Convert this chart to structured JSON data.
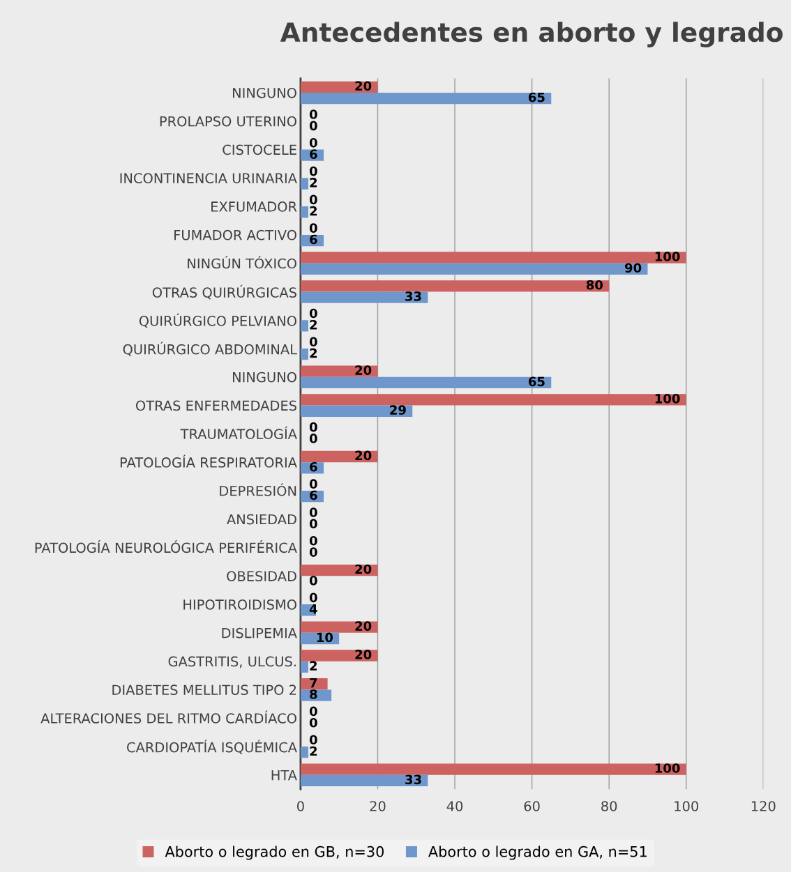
{
  "chart_data": {
    "type": "bar",
    "orientation": "horizontal",
    "title": "Antecedentes en aborto y legrado",
    "categories": [
      "NINGUNO",
      "PROLAPSO UTERINO",
      "CISTOCELE",
      "INCONTINENCIA URINARIA",
      "EXFUMADOR",
      "FUMADOR ACTIVO",
      "NINGÚN TÓXICO",
      "OTRAS QUIRÚRGICAS",
      "QUIRÚRGICO PELVIANO",
      "QUIRÚRGICO ABDOMINAL",
      "NINGUNO",
      "OTRAS ENFERMEDADES",
      "TRAUMATOLOGÍA",
      "PATOLOGÍA RESPIRATORIA",
      "DEPRESIÓN",
      "ANSIEDAD",
      "PATOLOGÍA NEUROLÓGICA PERIFÉRICA",
      "OBESIDAD",
      "HIPOTIROIDISMO",
      "DISLIPEMIA",
      "GASTRITIS, ULCUS.",
      "DIABETES MELLITUS TIPO 2",
      "ALTERACIONES DEL RITMO CARDÍACO",
      "CARDIOPATÍA ISQUÉMICA",
      "HTA"
    ],
    "series": [
      {
        "name": "Aborto o legrado en GB, n=30",
        "color": "#cd6361",
        "values": [
          20,
          0,
          0,
          0,
          0,
          0,
          100,
          80,
          0,
          0,
          20,
          100,
          0,
          20,
          0,
          0,
          0,
          20,
          0,
          20,
          20,
          7,
          0,
          0,
          100
        ]
      },
      {
        "name": "Aborto o legrado en GA, n=51",
        "color": "#6f97cc",
        "values": [
          65,
          0,
          6,
          2,
          2,
          6,
          90,
          33,
          2,
          2,
          65,
          29,
          0,
          6,
          6,
          0,
          0,
          0,
          4,
          10,
          2,
          8,
          0,
          2,
          33
        ]
      }
    ],
    "xlim": [
      0,
      120
    ],
    "xticks": [
      0,
      20,
      40,
      60,
      80,
      100,
      120
    ],
    "grid": "x",
    "legend": "bottom",
    "data_labels": true
  }
}
